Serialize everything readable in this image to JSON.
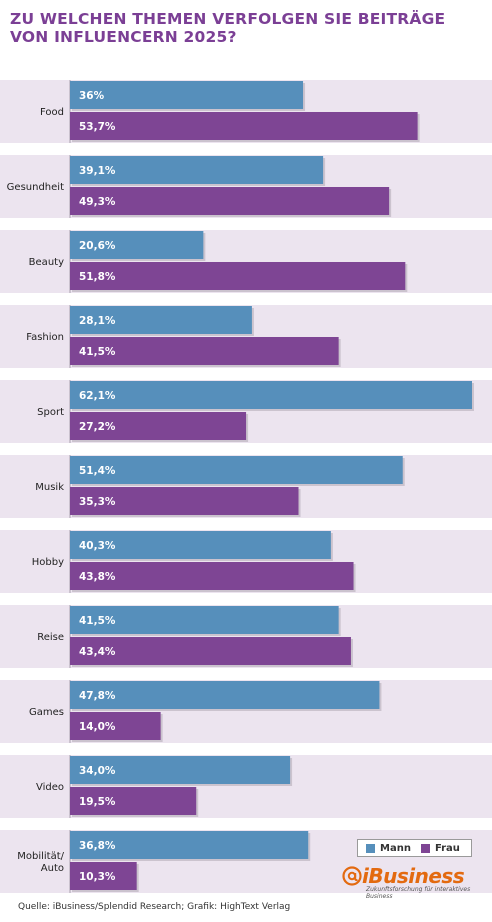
{
  "title": "ZU WELCHEN THEMEN VERFOLGEN SIE BEITRÄGE VON INFLUENCERN 2025?",
  "source": "Quelle: iBusiness/Splendid Research; Grafik: HighText Verlag",
  "logo": {
    "wordmark": "iBusiness",
    "tagline": "Zukunftsforschung für interaktives Business"
  },
  "chart_data": {
    "type": "bar",
    "orientation": "horizontal",
    "categories": [
      "Food",
      "Gesundheit",
      "Beauty",
      "Fashion",
      "Sport",
      "Musik",
      "Hobby",
      "Reise",
      "Games",
      "Video",
      "Mobilität/\nAuto"
    ],
    "series": [
      {
        "name": "Mann",
        "color": "#568fbb",
        "values": [
          36.0,
          39.1,
          20.6,
          28.1,
          62.1,
          51.4,
          40.3,
          41.5,
          47.8,
          34.0,
          36.8
        ],
        "labels": [
          "36%",
          "39,1%",
          "20,6%",
          "28,1%",
          "62,1%",
          "51,4%",
          "40,3%",
          "41,5%",
          "47,8%",
          "34,0%",
          "36,8%"
        ]
      },
      {
        "name": "Frau",
        "color": "#7e4594",
        "values": [
          53.7,
          49.3,
          51.8,
          41.5,
          27.2,
          35.3,
          43.8,
          43.4,
          14.0,
          19.5,
          10.3
        ],
        "labels": [
          "53,7%",
          "49,3%",
          "51,8%",
          "41,5%",
          "27,2%",
          "35,3%",
          "43,8%",
          "43,4%",
          "14,0%",
          "19,5%",
          "10,3%"
        ]
      }
    ],
    "xlim": [
      0,
      62.1
    ],
    "band_color": "#ece4ef",
    "legend_position": "bottom-right"
  }
}
